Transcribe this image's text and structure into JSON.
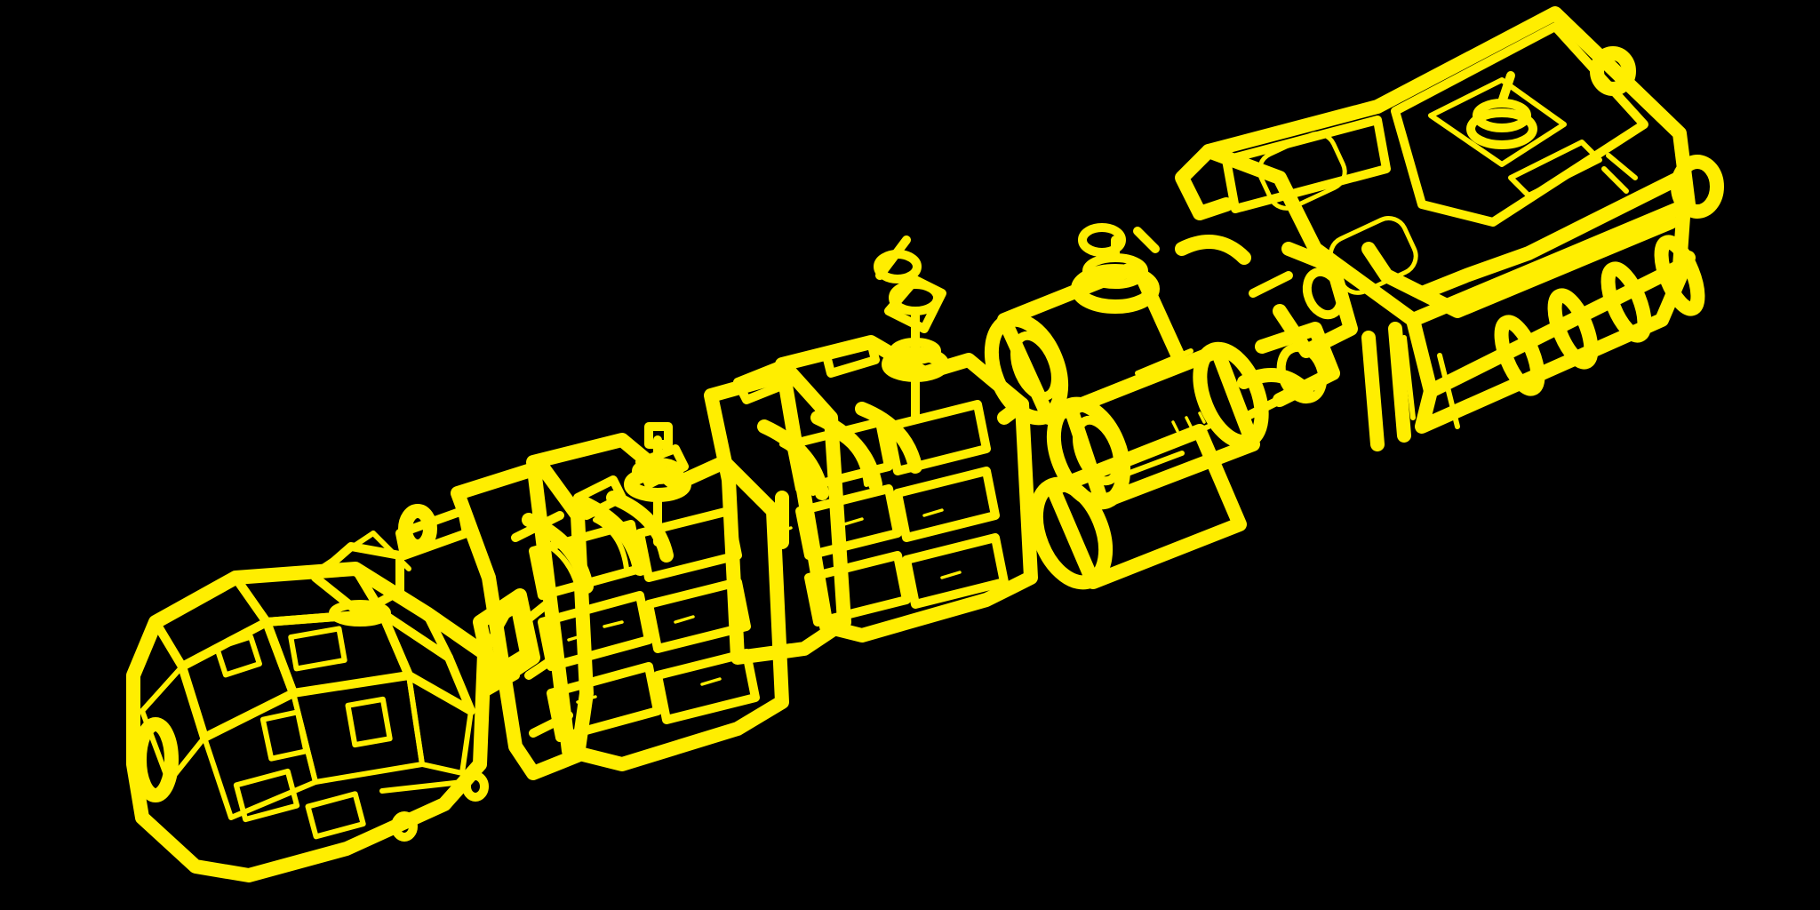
{
  "scene": {
    "background_color": "#000000",
    "line_color": "#ffee00",
    "subject": "spaceship-wireframe",
    "parts": [
      "front-pod",
      "module-cluster-1",
      "module-cluster-2",
      "cylinder-tanks",
      "engine-block"
    ]
  }
}
